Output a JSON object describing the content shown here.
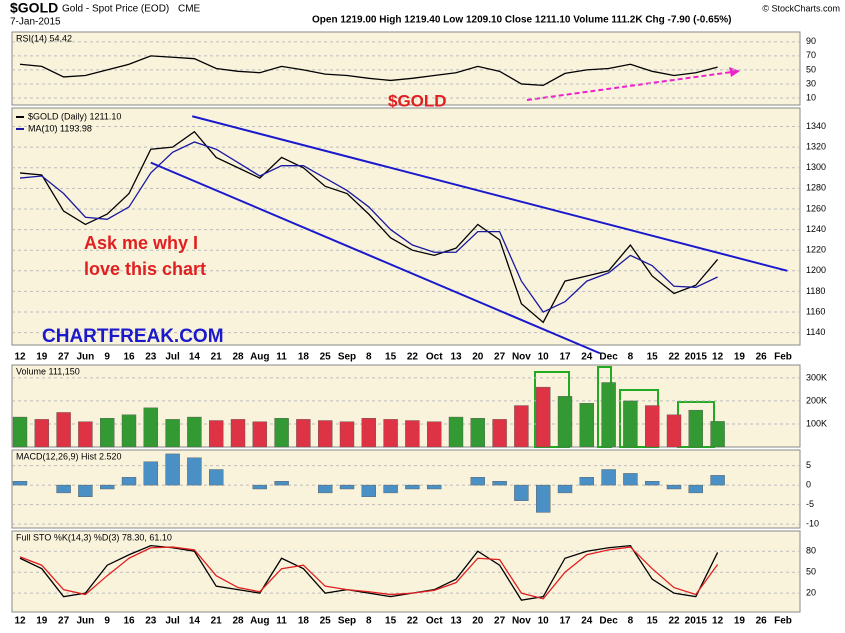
{
  "header": {
    "symbol": "$GOLD",
    "name": "Gold - Spot Price (EOD)",
    "exchange": "CME",
    "date": "7-Jan-2015",
    "quote": "Open 1219.00  High 1219.40  Low 1209.10  Close 1211.10  Volume 111.2K  Chg -7.90 (-0.65%)",
    "credit": "© StockCharts.com"
  },
  "chart_data": [
    {
      "type": "line",
      "title": "RSI(14) 54.42",
      "ylim": [
        0,
        104
      ],
      "yticks": [
        10,
        30,
        50,
        70,
        90
      ],
      "grid": true,
      "annotations": [
        "$GOLD"
      ],
      "series": [
        {
          "name": "RSI(14)",
          "color": "#000000",
          "values": [
            58,
            55,
            40,
            42,
            50,
            58,
            70,
            68,
            66,
            52,
            48,
            46,
            55,
            50,
            44,
            42,
            38,
            35,
            38,
            42,
            46,
            55,
            48,
            30,
            28,
            45,
            50,
            52,
            58,
            48,
            42,
            46,
            54,
            null,
            null,
            null
          ]
        }
      ]
    },
    {
      "type": "line",
      "ylim": [
        1128,
        1358
      ],
      "yticks": [
        1140,
        1160,
        1180,
        1200,
        1220,
        1240,
        1260,
        1280,
        1300,
        1320,
        1340
      ],
      "grid": true,
      "categories": [
        "12",
        "19",
        "27",
        "Jun",
        "9",
        "16",
        "23",
        "Jul",
        "14",
        "21",
        "28",
        "Aug",
        "11",
        "18",
        "25",
        "Sep",
        "8",
        "15",
        "22",
        "Oct",
        "13",
        "20",
        "27",
        "Nov",
        "10",
        "17",
        "24",
        "Dec",
        "8",
        "15",
        "22",
        "2015",
        "12",
        "19",
        "26",
        "Feb"
      ],
      "annotations": [
        "Ask me why I",
        "love this chart",
        "CHARTFREAK.COM"
      ],
      "trendlines": [
        {
          "color": "#1a1acc",
          "x": [
            7.9,
            35.2
          ],
          "values": [
            1350,
            1200
          ]
        },
        {
          "color": "#1a1acc",
          "x": [
            6,
            26.6
          ],
          "values": [
            1305,
            1120
          ]
        }
      ],
      "series": [
        {
          "name": "$GOLD (Daily) 1211.10",
          "color": "#000000",
          "values": [
            1295,
            1293,
            1258,
            1245,
            1255,
            1275,
            1318,
            1320,
            1335,
            1310,
            1300,
            1290,
            1310,
            1300,
            1282,
            1275,
            1255,
            1232,
            1220,
            1215,
            1222,
            1245,
            1230,
            1168,
            1150,
            1190,
            1195,
            1200,
            1225,
            1195,
            1178,
            1186,
            1211,
            null,
            null,
            null
          ]
        },
        {
          "name": "MA(10) 1193.98",
          "color": "#1a1aa0",
          "values": [
            1290,
            1292,
            1275,
            1252,
            1250,
            1262,
            1295,
            1315,
            1325,
            1318,
            1305,
            1292,
            1302,
            1302,
            1290,
            1278,
            1262,
            1240,
            1225,
            1218,
            1218,
            1238,
            1238,
            1190,
            1160,
            1170,
            1190,
            1198,
            1215,
            1205,
            1185,
            1184,
            1194,
            null,
            null,
            null
          ]
        }
      ]
    },
    {
      "type": "bar",
      "title": "Volume 111,150",
      "ylim": [
        0,
        356000
      ],
      "yticks": [
        {
          "value": 100000,
          "label": "100K"
        },
        {
          "value": 200000,
          "label": "200K"
        },
        {
          "value": 300000,
          "label": "300K"
        }
      ],
      "grid": true,
      "up_color": "#339933",
      "down_color": "#dd3344",
      "values": [
        130000,
        120000,
        150000,
        110000,
        125000,
        140000,
        170000,
        120000,
        130000,
        115000,
        120000,
        110000,
        125000,
        120000,
        115000,
        110000,
        125000,
        120000,
        115000,
        110000,
        130000,
        125000,
        120000,
        180000,
        260000,
        220000,
        190000,
        280000,
        200000,
        180000,
        140000,
        160000,
        111150,
        null,
        null,
        null
      ]
    },
    {
      "type": "bar",
      "title": "MACD(12,26,9) Hist 2.520",
      "ylim": [
        -11,
        9
      ],
      "yticks": [
        -10,
        -5,
        0,
        5
      ],
      "grid": true,
      "color": "#4a90c4",
      "values": [
        1,
        0,
        -2,
        -3,
        -1,
        2,
        6,
        8,
        7,
        4,
        0,
        -1,
        1,
        0,
        -2,
        -1,
        -3,
        -2,
        -1,
        -1,
        0,
        2,
        1,
        -4,
        -7,
        -2,
        2,
        4,
        3,
        1,
        -1,
        -2,
        2.5,
        null,
        null,
        null
      ]
    },
    {
      "type": "line",
      "title": "Full STO %K(14,3) %D(3) 78.30, 61.10",
      "ylim": [
        -7,
        109
      ],
      "yticks": [
        20,
        50,
        80
      ],
      "grid": true,
      "series": [
        {
          "name": "%K",
          "color": "#000000",
          "values": [
            70,
            55,
            15,
            20,
            60,
            75,
            88,
            85,
            80,
            30,
            25,
            20,
            70,
            55,
            20,
            25,
            20,
            15,
            20,
            25,
            40,
            80,
            60,
            10,
            15,
            70,
            80,
            85,
            88,
            40,
            20,
            15,
            78.3,
            null,
            null,
            null
          ]
        },
        {
          "name": "%D",
          "color": "#e02020",
          "values": [
            72,
            60,
            25,
            18,
            45,
            70,
            85,
            86,
            82,
            45,
            28,
            22,
            55,
            60,
            30,
            25,
            22,
            18,
            20,
            24,
            35,
            70,
            68,
            20,
            12,
            50,
            75,
            82,
            86,
            55,
            28,
            18,
            61.1,
            null,
            null,
            null
          ]
        }
      ]
    }
  ]
}
